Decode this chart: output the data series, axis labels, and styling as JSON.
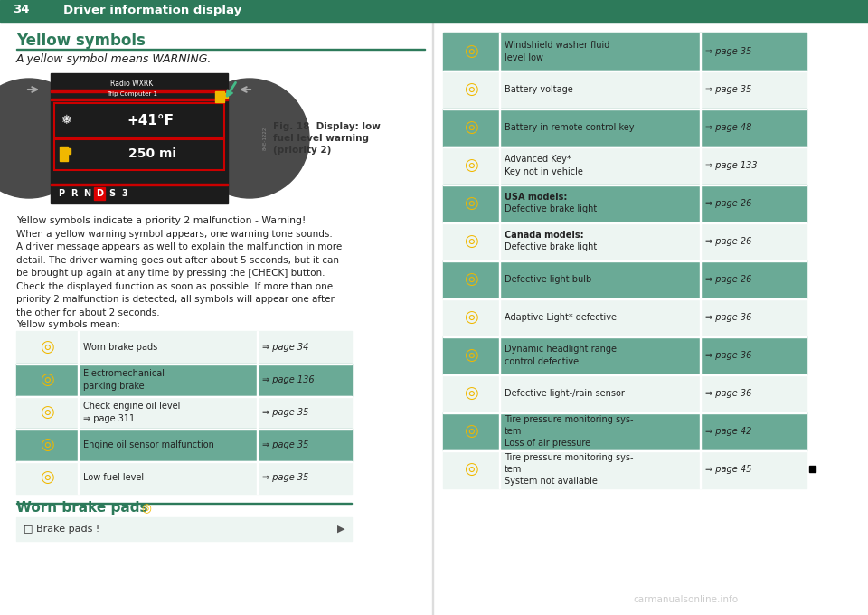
{
  "page_number": "34",
  "header_title": "Driver information display",
  "header_line_color": "#2d7a5a",
  "bg_color": "#ffffff",
  "section_title": "Yellow symbols",
  "section_title_color": "#2d7a5a",
  "section_subtitle": "A yellow symbol means WARNING.",
  "fig_caption_line1": "Fig. 18  Display: low",
  "fig_caption_line2": "fuel level warning",
  "fig_caption_line3": "(priority 2)",
  "body_text_1": "Yellow symbols indicate a priority 2 malfunction - Warning!",
  "body_text_2": "When a yellow warning symbol appears, one warning tone sounds.\nA driver message appears as well to explain the malfunction in more\ndetail. The driver warning goes out after about 5 seconds, but it can\nbe brought up again at any time by pressing the [CHECK] button.",
  "body_text_3": "Check the displayed function as soon as possible. If more than one\npriority 2 malfunction is detected, all symbols will appear one after\nthe other for about 2 seconds.",
  "body_text_4": "Yellow symbols mean:",
  "table_header_color": "#6aaa96",
  "table_row_light": "#edf5f2",
  "yellow_color": "#f0b800",
  "green_color": "#2d7a5a",
  "left_table_rows": [
    {
      "text": "Worn brake pads",
      "page": "⇒ page 34",
      "shaded": false
    },
    {
      "text": "Electromechanical\nparking brake",
      "page": "⇒ page 136",
      "shaded": true
    },
    {
      "text": "Check engine oil level\n⇒ page 311",
      "page": "⇒ page 35",
      "shaded": false
    },
    {
      "text": "Engine oil sensor malfunction",
      "page": "⇒ page 35",
      "shaded": true
    },
    {
      "text": "Low fuel level",
      "page": "⇒ page 35",
      "shaded": false
    }
  ],
  "right_table_rows": [
    {
      "text": "Windshield washer fluid\nlevel low",
      "page": "⇒ page 35",
      "shaded": true
    },
    {
      "text": "Battery voltage",
      "page": "⇒ page 35",
      "shaded": false
    },
    {
      "text": "Battery in remote control key",
      "page": "⇒ page 48",
      "shaded": true
    },
    {
      "text": "Advanced Key*\nKey not in vehicle",
      "page": "⇒ page 133",
      "shaded": false
    },
    {
      "text": "USA models:\nDefective brake light",
      "page": "⇒ page 26",
      "shaded": true,
      "bold_first": true
    },
    {
      "text": "Canada models:\nDefective brake light",
      "page": "⇒ page 26",
      "shaded": false,
      "bold_first": true
    },
    {
      "text": "Defective light bulb",
      "page": "⇒ page 26",
      "shaded": true
    },
    {
      "text": "Adaptive Light* defective",
      "page": "⇒ page 36",
      "shaded": false
    },
    {
      "text": "Dynamic headlight range\ncontrol defective",
      "page": "⇒ page 36",
      "shaded": true
    },
    {
      "text": "Defective light-/rain sensor",
      "page": "⇒ page 36",
      "shaded": false
    },
    {
      "text": "Tire pressure monitoring sys-\ntem\nLoss of air pressure",
      "page": "⇒ page 42",
      "shaded": true
    },
    {
      "text": "Tire pressure monitoring sys-\ntem\nSystem not available",
      "page": "⇒ page 45",
      "shaded": false
    }
  ],
  "bottom_section_title": "Worn brake pads",
  "bottom_text": "□ Brake pads !",
  "watermark": "carmanualsonline.info"
}
